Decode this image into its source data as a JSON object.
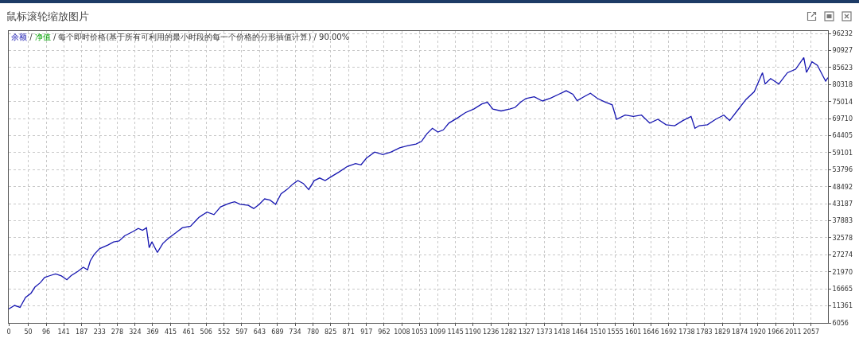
{
  "chart_data": {
    "type": "line",
    "title": "鼠标滚轮缩放图片",
    "annotations": [
      "/",
      "/ 每个即时价格(基于所有可利用的最小时段的每一个价格的分形插值计算) / 90.00%"
    ],
    "x": [
      0,
      15,
      29,
      43,
      57,
      67,
      81,
      92,
      106,
      120,
      135,
      149,
      160,
      177,
      191,
      202,
      209,
      219,
      233,
      254,
      269,
      283,
      297,
      318,
      332,
      343,
      353,
      360,
      367,
      381,
      395,
      409,
      428,
      445,
      466,
      487,
      508,
      526,
      543,
      565,
      579,
      593,
      614,
      628,
      642,
      656,
      670,
      684,
      698,
      713,
      727,
      741,
      755,
      769,
      783,
      797,
      811,
      825,
      847,
      868,
      889,
      903,
      917,
      938,
      959,
      980,
      1002,
      1023,
      1044,
      1058,
      1072,
      1086,
      1100,
      1114,
      1128,
      1150,
      1171,
      1192,
      1213,
      1227,
      1241,
      1262,
      1284,
      1298,
      1312,
      1326,
      1347,
      1368,
      1389,
      1410,
      1429,
      1446,
      1457,
      1474,
      1491,
      1509,
      1530,
      1547,
      1558,
      1580,
      1601,
      1622,
      1643,
      1664,
      1685,
      1707,
      1728,
      1749,
      1759,
      1770,
      1791,
      1812,
      1833,
      1848,
      1869,
      1890,
      1911,
      1932,
      1939,
      1953,
      1974,
      1996,
      2017,
      2038,
      2045,
      2059,
      2073,
      2087,
      2094,
      2100
    ],
    "series": [
      {
        "name": "余额",
        "color": "#1515b0",
        "values": [
          10400,
          11500,
          10900,
          14000,
          15300,
          17200,
          18600,
          20200,
          20800,
          21300,
          20700,
          19500,
          20800,
          22100,
          23400,
          22600,
          25400,
          27400,
          29200,
          30300,
          31300,
          31600,
          33200,
          34500,
          35500,
          34900,
          35700,
          29500,
          31300,
          28000,
          30800,
          32400,
          34100,
          35700,
          36200,
          38900,
          40600,
          39800,
          42200,
          43300,
          43800,
          43000,
          42700,
          41700,
          43000,
          44700,
          44300,
          43000,
          46300,
          47600,
          49200,
          50400,
          49500,
          47600,
          50400,
          51200,
          50400,
          51500,
          53100,
          54800,
          55700,
          55300,
          57400,
          59300,
          58500,
          59300,
          60600,
          61300,
          61800,
          62600,
          65000,
          66700,
          65500,
          66200,
          68300,
          69900,
          71600,
          72700,
          74300,
          74800,
          72700,
          72100,
          72700,
          73200,
          74800,
          76000,
          76500,
          75200,
          76100,
          77300,
          78400,
          77300,
          75300,
          76500,
          77600,
          76000,
          74800,
          74000,
          69500,
          70800,
          70400,
          70800,
          68300,
          69500,
          67800,
          67500,
          69100,
          70400,
          66700,
          67500,
          67800,
          69500,
          70800,
          69100,
          72400,
          75700,
          78100,
          84000,
          80500,
          82200,
          80500,
          84000,
          85100,
          88700,
          84100,
          87400,
          86300,
          83000,
          81400,
          82500
        ]
      },
      {
        "name": "净值",
        "color": "#00a000",
        "values": [
          null,
          null,
          null,
          null,
          null,
          null,
          null,
          null,
          null,
          null,
          null,
          null,
          null,
          null,
          null,
          null,
          null,
          null,
          null,
          null,
          null,
          null,
          null,
          null,
          null,
          null,
          null,
          null,
          null,
          null,
          null,
          null,
          null,
          null,
          null,
          null,
          null,
          null,
          null,
          null,
          null,
          null,
          null,
          null,
          null,
          null,
          null,
          null,
          null,
          null,
          null,
          null,
          null,
          null,
          null,
          null,
          null,
          null,
          null,
          null,
          null,
          null,
          null,
          null,
          null,
          null,
          null,
          null,
          null,
          null,
          null,
          null,
          null,
          null,
          null,
          null,
          null,
          null,
          null,
          null,
          null,
          null,
          null,
          null,
          null,
          null,
          null,
          null,
          null,
          null,
          null,
          null,
          null,
          null,
          null,
          null,
          null,
          null,
          null,
          null,
          null,
          null,
          null,
          null,
          null,
          null,
          null,
          null,
          null,
          null,
          null,
          null,
          null,
          null,
          null,
          null,
          null,
          null,
          null,
          null,
          null,
          null,
          null,
          null,
          null,
          null,
          null,
          null,
          null,
          null
        ]
      }
    ],
    "xlim": [
      0,
      2100
    ],
    "xticks": [
      0,
      50,
      96,
      141,
      187,
      233,
      278,
      324,
      369,
      415,
      461,
      506,
      552,
      597,
      643,
      689,
      734,
      780,
      825,
      871,
      917,
      962,
      1008,
      1053,
      1099,
      1145,
      1190,
      1236,
      1282,
      1327,
      1373,
      1418,
      1464,
      1510,
      1555,
      1601,
      1646,
      1692,
      1738,
      1783,
      1829,
      1874,
      1920,
      1966,
      2011,
      2057
    ],
    "ylim": [
      6056,
      97000
    ],
    "yticks": [
      6056,
      11361,
      16665,
      21970,
      27274,
      32578,
      37883,
      43187,
      48492,
      53796,
      59101,
      64405,
      69710,
      75014,
      80318,
      85623,
      90927,
      96232
    ],
    "grid": true,
    "legend": "top left",
    "line_style": "solid"
  }
}
